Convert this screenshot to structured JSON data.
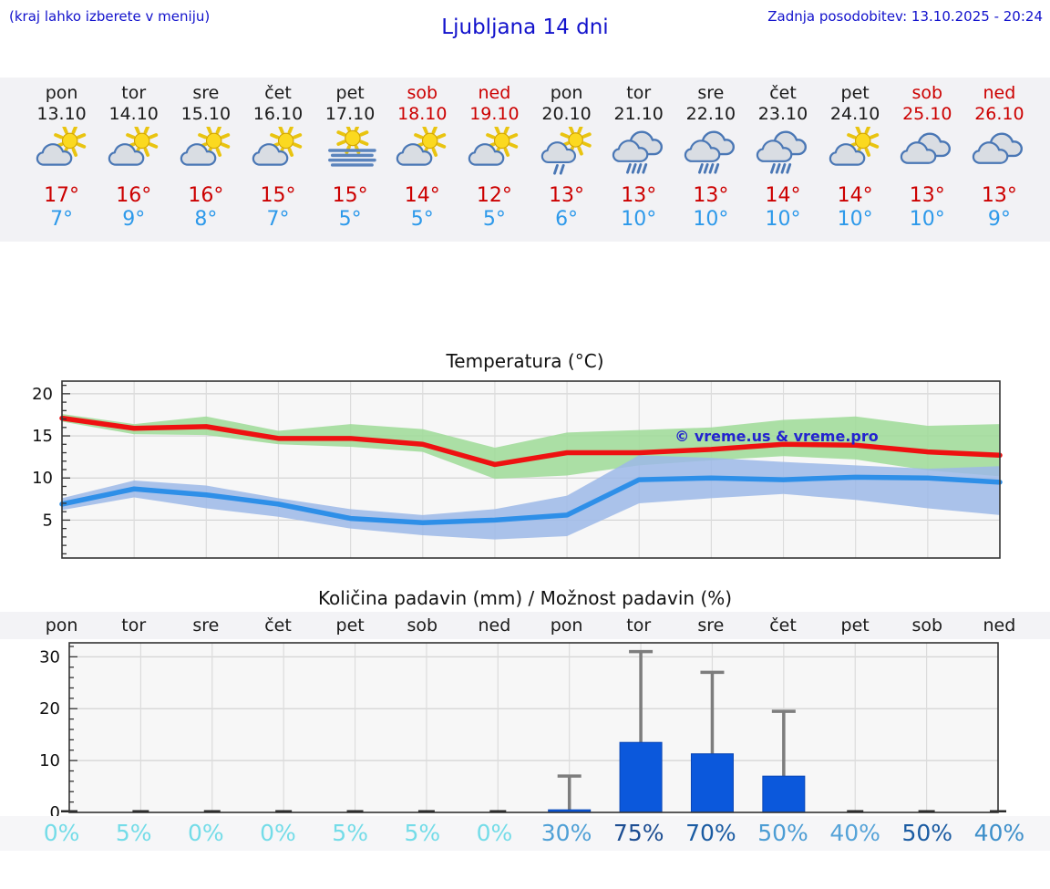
{
  "header": {
    "hint": "(kraj lahko izberete v meniju)",
    "title": "Ljubljana 14 dni",
    "updated": "Zadnja posodobitev: 13.10.2025 - 20:24"
  },
  "colors": {
    "header_blue": "#1212cc",
    "weekend_red": "#cc0000",
    "hi_temp_red": "#cc0000",
    "lo_temp_blue": "#2d99ea",
    "strip_bg": "#f2f2f5",
    "plot_bg": "#f7f7f7",
    "gridline": "#d4d4d4",
    "plot_border": "#333333",
    "watermark_blue": "#2323cf",
    "whisker_gray": "#7d7d7d"
  },
  "forecast": {
    "days": [
      {
        "name": "pon",
        "date": "13.10",
        "weekend": false,
        "icon": "partly-cloudy",
        "hi": "17°",
        "lo": "7°"
      },
      {
        "name": "tor",
        "date": "14.10",
        "weekend": false,
        "icon": "partly-cloudy",
        "hi": "16°",
        "lo": "9°"
      },
      {
        "name": "sre",
        "date": "15.10",
        "weekend": false,
        "icon": "partly-cloudy",
        "hi": "16°",
        "lo": "8°"
      },
      {
        "name": "čet",
        "date": "16.10",
        "weekend": false,
        "icon": "partly-cloudy",
        "hi": "15°",
        "lo": "7°"
      },
      {
        "name": "pet",
        "date": "17.10",
        "weekend": false,
        "icon": "fog-sun",
        "hi": "15°",
        "lo": "5°"
      },
      {
        "name": "sob",
        "date": "18.10",
        "weekend": true,
        "icon": "partly-cloudy",
        "hi": "14°",
        "lo": "5°"
      },
      {
        "name": "ned",
        "date": "19.10",
        "weekend": true,
        "icon": "partly-cloudy",
        "hi": "12°",
        "lo": "5°"
      },
      {
        "name": "pon",
        "date": "20.10",
        "weekend": false,
        "icon": "sun-rain",
        "hi": "13°",
        "lo": "6°"
      },
      {
        "name": "tor",
        "date": "21.10",
        "weekend": false,
        "icon": "rain",
        "hi": "13°",
        "lo": "10°"
      },
      {
        "name": "sre",
        "date": "22.10",
        "weekend": false,
        "icon": "rain",
        "hi": "13°",
        "lo": "10°"
      },
      {
        "name": "čet",
        "date": "23.10",
        "weekend": false,
        "icon": "rain",
        "hi": "14°",
        "lo": "10°"
      },
      {
        "name": "pet",
        "date": "24.10",
        "weekend": false,
        "icon": "partly-cloudy",
        "hi": "14°",
        "lo": "10°"
      },
      {
        "name": "sob",
        "date": "25.10",
        "weekend": true,
        "icon": "cloudy",
        "hi": "13°",
        "lo": "10°"
      },
      {
        "name": "ned",
        "date": "26.10",
        "weekend": true,
        "icon": "cloudy",
        "hi": "13°",
        "lo": "9°"
      }
    ]
  },
  "chart_data": [
    {
      "type": "line",
      "title": "Temperatura (°C)",
      "categories": [
        "pon",
        "tor",
        "sre",
        "čet",
        "pet",
        "sob",
        "ned",
        "pon",
        "tor",
        "sre",
        "čet",
        "pet",
        "sob",
        "ned"
      ],
      "series": [
        {
          "name": "max-temp",
          "color": "#ee1111",
          "values": [
            17.1,
            15.9,
            16.1,
            14.7,
            14.7,
            14.0,
            11.6,
            13.0,
            13.0,
            13.4,
            14.0,
            13.9,
            13.1,
            12.7
          ]
        },
        {
          "name": "min-temp",
          "color": "#2e8fe8",
          "values": [
            6.9,
            8.7,
            8.0,
            6.9,
            5.2,
            4.7,
            5.0,
            5.6,
            9.8,
            10.0,
            9.8,
            10.1,
            10.0,
            9.5
          ]
        }
      ],
      "bands": [
        {
          "name": "max-temp-range",
          "color": "#9ddb97",
          "upper": [
            17.6,
            16.4,
            17.3,
            15.6,
            16.4,
            15.8,
            13.6,
            15.4,
            15.7,
            16.0,
            16.9,
            17.3,
            16.2,
            16.4
          ],
          "lower": [
            16.7,
            15.2,
            15.1,
            14.0,
            13.7,
            13.1,
            9.9,
            10.3,
            11.5,
            12.1,
            12.6,
            12.2,
            10.9,
            10.2
          ]
        },
        {
          "name": "min-temp-range",
          "color": "#9cb8e8",
          "upper": [
            7.6,
            9.7,
            9.1,
            7.6,
            6.3,
            5.6,
            6.3,
            7.9,
            12.7,
            12.4,
            11.9,
            11.5,
            11.1,
            11.4
          ],
          "lower": [
            6.2,
            7.7,
            6.4,
            5.4,
            4.0,
            3.2,
            2.7,
            3.1,
            7.0,
            7.6,
            8.1,
            7.4,
            6.4,
            5.6
          ]
        }
      ],
      "ylim": [
        0.5,
        21.5
      ],
      "yticks": [
        5,
        10,
        15,
        20
      ],
      "grid": true,
      "watermark": "© vreme.us & vreme.pro"
    },
    {
      "type": "bar",
      "title": "Količina padavin (mm) / Možnost padavin (%)",
      "categories": [
        "pon",
        "tor",
        "sre",
        "čet",
        "pet",
        "sob",
        "ned",
        "pon",
        "tor",
        "sre",
        "čet",
        "pet",
        "sob",
        "ned"
      ],
      "values": [
        0,
        0,
        0,
        0,
        0,
        0,
        0,
        0.5,
        13.5,
        11.3,
        7.0,
        0,
        0,
        0
      ],
      "whisker_max": [
        0,
        0,
        0,
        0,
        0,
        0,
        0,
        7,
        31,
        27,
        19.5,
        0,
        0,
        0
      ],
      "probabilities": [
        {
          "label": "0%",
          "color": "#74dce8"
        },
        {
          "label": "5%",
          "color": "#74dce8"
        },
        {
          "label": "0%",
          "color": "#74dce8"
        },
        {
          "label": "0%",
          "color": "#74dce8"
        },
        {
          "label": "5%",
          "color": "#74dce8"
        },
        {
          "label": "5%",
          "color": "#74dce8"
        },
        {
          "label": "0%",
          "color": "#74dce8"
        },
        {
          "label": "30%",
          "color": "#4fa0d6"
        },
        {
          "label": "75%",
          "color": "#1c4d92"
        },
        {
          "label": "70%",
          "color": "#1a5ba2"
        },
        {
          "label": "50%",
          "color": "#4c9dd4"
        },
        {
          "label": "40%",
          "color": "#55a3d8"
        },
        {
          "label": "50%",
          "color": "#1a5ba2"
        },
        {
          "label": "40%",
          "color": "#3d8fca"
        }
      ],
      "ylim": [
        0,
        32.7
      ],
      "yticks": [
        0,
        10,
        20,
        30
      ],
      "grid": true,
      "bar_color": "#0b58dc"
    }
  ]
}
